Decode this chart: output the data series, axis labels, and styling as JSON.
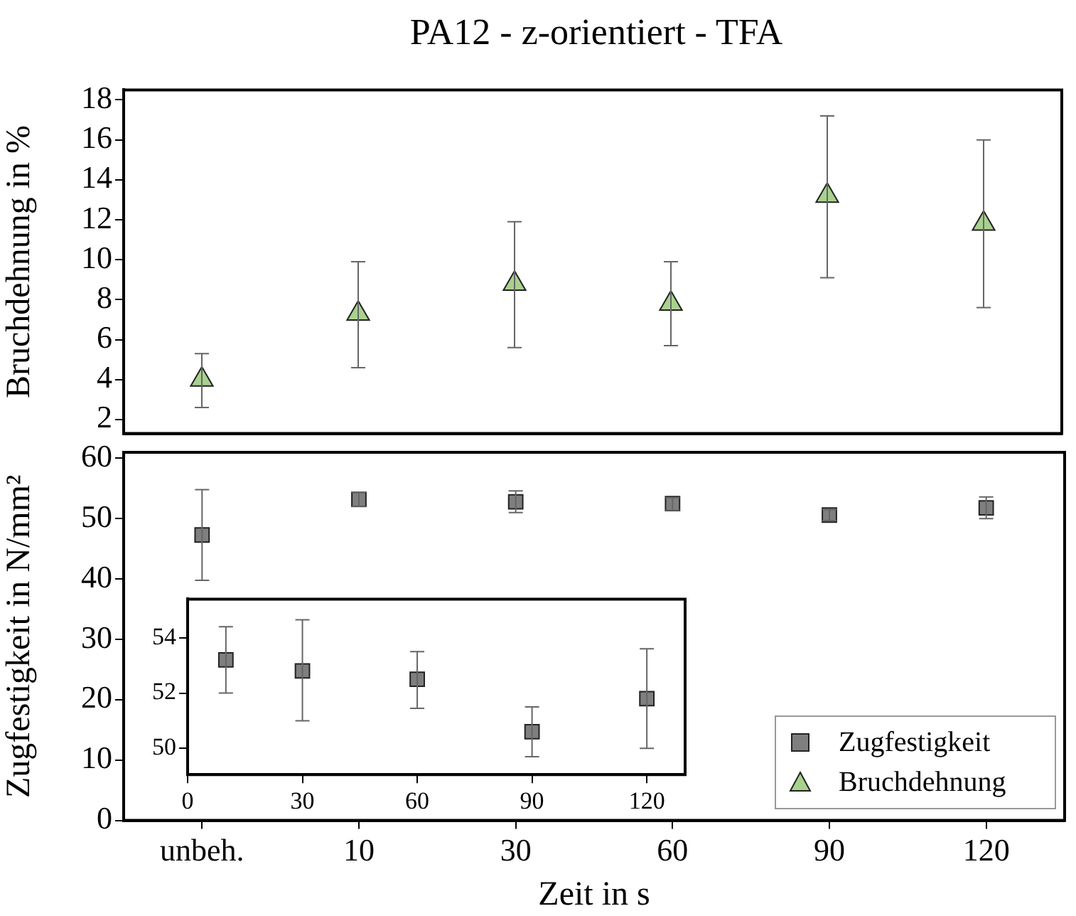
{
  "chart_data": [
    {
      "type": "scatter",
      "title": "PA12 - z-orientiert - TFA",
      "ylabel": "Bruchdehnung in %",
      "categories": [
        null,
        null,
        null,
        null,
        null,
        null
      ],
      "series": [
        {
          "name": "Bruchdehnung",
          "color": "#a9d18e",
          "values": [
            4.0,
            7.3,
            8.8,
            7.8,
            13.2,
            11.8
          ],
          "errors": [
            [
              2.6,
              5.3
            ],
            [
              4.6,
              9.9
            ],
            [
              5.6,
              11.9
            ],
            [
              5.7,
              9.9
            ],
            [
              9.1,
              17.2
            ],
            [
              7.6,
              16.0
            ]
          ]
        }
      ],
      "ylim": [
        1.3,
        18.5
      ],
      "yticks": [
        2,
        4,
        6,
        8,
        10,
        12,
        14,
        16,
        18
      ],
      "grid": false,
      "marker": "triangle",
      "tick_labels": "y",
      "legend": "bottom right"
    },
    {
      "type": "scatter",
      "xlabel": "Zeit in s",
      "ylabel": "Zugfestigkeit in N/mm²",
      "categories": [
        "unbeh.",
        "10",
        "30",
        "60",
        "90",
        "120"
      ],
      "series": [
        {
          "name": "Zugfestigkeit",
          "color": "#7f7f7f",
          "values": [
            47.3,
            53.2,
            52.8,
            52.5,
            50.6,
            51.8
          ],
          "errors": [
            [
              39.8,
              54.8
            ],
            [
              52.0,
              54.4
            ],
            [
              51.0,
              54.6
            ],
            [
              51.4,
              53.5
            ],
            [
              49.7,
              51.5
            ],
            [
              50.0,
              53.6
            ]
          ]
        }
      ],
      "ylim": [
        0,
        61
      ],
      "yticks": [
        0,
        10,
        20,
        30,
        40,
        50,
        60
      ],
      "grid": false,
      "marker": "square",
      "legend": "bottom right"
    },
    {
      "type": "scatter",
      "x": [
        10,
        30,
        60,
        90,
        120
      ],
      "xlim": [
        0,
        130
      ],
      "xticks": [
        0,
        30,
        60,
        90,
        120
      ],
      "series": [
        {
          "color": "#7f7f7f",
          "values": [
            53.2,
            52.8,
            52.5,
            50.6,
            51.8
          ],
          "errors": [
            [
              52.0,
              54.4
            ],
            [
              51.0,
              54.65
            ],
            [
              51.45,
              53.5
            ],
            [
              49.7,
              51.5
            ],
            [
              50.0,
              53.6
            ]
          ]
        }
      ],
      "ylim": [
        49.05,
        55.4
      ],
      "yticks": [
        50,
        52,
        54
      ],
      "grid": false,
      "marker": "square",
      "legend": false
    }
  ]
}
